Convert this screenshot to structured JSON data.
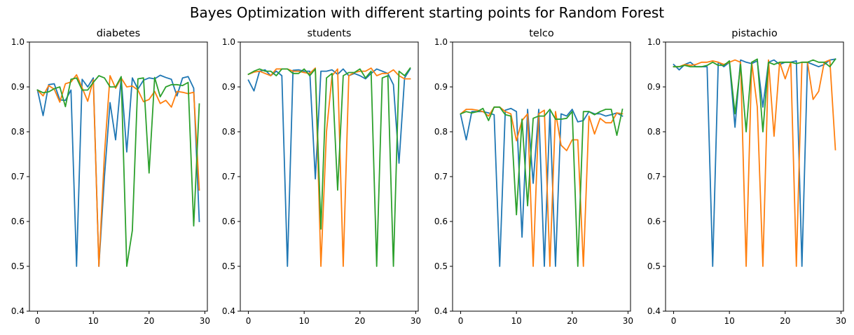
{
  "suptitle": "Bayes Optimization with different starting points for Random Forest",
  "colors": {
    "series_1": "#1f77b4",
    "series_2": "#ff7f0e",
    "series_3": "#2ca02c"
  },
  "chart_data": [
    {
      "type": "line",
      "title": "diabetes",
      "xlim": [
        -1.45,
        30.45
      ],
      "ylim": [
        0.4,
        1.0
      ],
      "xticks": [
        "0",
        "10",
        "20",
        "30"
      ],
      "yticks": [
        "0.4",
        "0.5",
        "0.6",
        "0.7",
        "0.8",
        "0.9",
        "1.0"
      ],
      "grid": false,
      "x": [
        0,
        1,
        2,
        3,
        4,
        5,
        6,
        7,
        8,
        9,
        10,
        11,
        12,
        13,
        14,
        15,
        16,
        17,
        18,
        19,
        20,
        21,
        22,
        23,
        24,
        25,
        26,
        27,
        28,
        29
      ],
      "series": [
        {
          "values": [
            0.893,
            0.836,
            0.905,
            0.907,
            0.871,
            0.87,
            0.893,
            0.5,
            0.917,
            0.9,
            0.92,
            0.5,
            0.7,
            0.865,
            0.782,
            0.92,
            0.755,
            0.92,
            0.895,
            0.915,
            0.92,
            0.918,
            0.926,
            0.921,
            0.917,
            0.88,
            0.92,
            0.923,
            0.897,
            0.6
          ]
        },
        {
          "values": [
            0.893,
            0.88,
            0.903,
            0.895,
            0.866,
            0.907,
            0.911,
            0.927,
            0.898,
            0.868,
            0.916,
            0.5,
            0.75,
            0.925,
            0.897,
            0.92,
            0.9,
            0.902,
            0.893,
            0.867,
            0.872,
            0.89,
            0.863,
            0.87,
            0.855,
            0.89,
            0.888,
            0.885,
            0.888,
            0.67
          ]
        },
        {
          "values": [
            0.893,
            0.887,
            0.889,
            0.896,
            0.9,
            0.856,
            0.917,
            0.92,
            0.893,
            0.893,
            0.91,
            0.925,
            0.92,
            0.9,
            0.9,
            0.923,
            0.5,
            0.58,
            0.918,
            0.92,
            0.708,
            0.921,
            0.878,
            0.9,
            0.905,
            0.905,
            0.903,
            0.91,
            0.59,
            0.862
          ]
        }
      ]
    },
    {
      "type": "line",
      "title": "students",
      "xlim": [
        -1.45,
        30.45
      ],
      "ylim": [
        0.4,
        1.0
      ],
      "xticks": [
        "0",
        "10",
        "20",
        "30"
      ],
      "yticks": [
        "0.4",
        "0.5",
        "0.6",
        "0.7",
        "0.8",
        "0.9",
        "1.0"
      ],
      "grid": false,
      "x": [
        0,
        1,
        2,
        3,
        4,
        5,
        6,
        7,
        8,
        9,
        10,
        11,
        12,
        13,
        14,
        15,
        16,
        17,
        18,
        19,
        20,
        21,
        22,
        23,
        24,
        25,
        26,
        27,
        28,
        29
      ],
      "series": [
        {
          "values": [
            0.915,
            0.891,
            0.935,
            0.938,
            0.925,
            0.935,
            0.925,
            0.5,
            0.937,
            0.938,
            0.935,
            0.935,
            0.695,
            0.935,
            0.935,
            0.938,
            0.928,
            0.94,
            0.925,
            0.93,
            0.925,
            0.918,
            0.93,
            0.94,
            0.935,
            0.93,
            0.905,
            0.73,
            0.92,
            0.94
          ]
        },
        {
          "values": [
            0.928,
            0.933,
            0.935,
            0.93,
            0.925,
            0.94,
            0.94,
            0.94,
            0.935,
            0.935,
            0.932,
            0.93,
            0.942,
            0.5,
            0.8,
            0.925,
            0.94,
            0.5,
            0.925,
            0.932,
            0.935,
            0.935,
            0.942,
            0.925,
            0.93,
            0.93,
            0.938,
            0.925,
            0.918,
            0.918
          ]
        },
        {
          "values": [
            0.928,
            0.935,
            0.94,
            0.935,
            0.935,
            0.925,
            0.94,
            0.94,
            0.93,
            0.93,
            0.94,
            0.925,
            0.94,
            0.583,
            0.92,
            0.93,
            0.67,
            0.925,
            0.932,
            0.932,
            0.94,
            0.92,
            0.935,
            0.5,
            0.92,
            0.925,
            0.5,
            0.935,
            0.925,
            0.942
          ]
        }
      ]
    },
    {
      "type": "line",
      "title": "telco",
      "xlim": [
        -1.45,
        30.45
      ],
      "ylim": [
        0.4,
        1.0
      ],
      "xticks": [
        "0",
        "10",
        "20",
        "30"
      ],
      "yticks": [
        "0.4",
        "0.5",
        "0.6",
        "0.7",
        "0.8",
        "0.9",
        "1.0"
      ],
      "grid": false,
      "x": [
        0,
        1,
        2,
        3,
        4,
        5,
        6,
        7,
        8,
        9,
        10,
        11,
        12,
        13,
        14,
        15,
        16,
        17,
        18,
        19,
        20,
        21,
        22,
        23,
        24,
        25,
        26,
        27,
        28,
        29
      ],
      "series": [
        {
          "values": [
            0.838,
            0.782,
            0.845,
            0.845,
            0.845,
            0.842,
            0.838,
            0.5,
            0.848,
            0.852,
            0.845,
            0.565,
            0.85,
            0.685,
            0.85,
            0.5,
            0.845,
            0.5,
            0.84,
            0.835,
            0.85,
            0.822,
            0.825,
            0.845,
            0.84,
            0.84,
            0.835,
            0.838,
            0.842,
            0.835
          ]
        },
        {
          "values": [
            0.84,
            0.85,
            0.85,
            0.848,
            0.845,
            0.835,
            0.855,
            0.855,
            0.845,
            0.84,
            0.78,
            0.825,
            0.84,
            0.5,
            0.84,
            0.848,
            0.5,
            0.845,
            0.77,
            0.758,
            0.782,
            0.782,
            0.5,
            0.835,
            0.795,
            0.83,
            0.82,
            0.82,
            0.842,
            0.84
          ]
        },
        {
          "values": [
            0.84,
            0.845,
            0.842,
            0.845,
            0.852,
            0.825,
            0.855,
            0.855,
            0.838,
            0.835,
            0.615,
            0.828,
            0.635,
            0.83,
            0.835,
            0.835,
            0.85,
            0.828,
            0.828,
            0.83,
            0.845,
            0.5,
            0.845,
            0.845,
            0.838,
            0.845,
            0.85,
            0.85,
            0.792,
            0.85
          ]
        }
      ]
    },
    {
      "type": "line",
      "title": "pistachio",
      "xlim": [
        -1.45,
        30.45
      ],
      "ylim": [
        0.4,
        1.0
      ],
      "xticks": [
        "0",
        "10",
        "20",
        "30"
      ],
      "yticks": [
        "0.4",
        "0.5",
        "0.6",
        "0.7",
        "0.8",
        "0.9",
        "1.0"
      ],
      "grid": false,
      "x": [
        0,
        1,
        2,
        3,
        4,
        5,
        6,
        7,
        8,
        9,
        10,
        11,
        12,
        13,
        14,
        15,
        16,
        17,
        18,
        19,
        20,
        21,
        22,
        23,
        24,
        25,
        26,
        27,
        28,
        29
      ],
      "series": [
        {
          "values": [
            0.95,
            0.938,
            0.95,
            0.955,
            0.945,
            0.945,
            0.945,
            0.5,
            0.955,
            0.945,
            0.955,
            0.81,
            0.96,
            0.955,
            0.952,
            0.958,
            0.855,
            0.955,
            0.96,
            0.95,
            0.955,
            0.955,
            0.958,
            0.5,
            0.955,
            0.95,
            0.945,
            0.95,
            0.96,
            0.962
          ]
        },
        {
          "values": [
            0.945,
            0.945,
            0.95,
            0.948,
            0.95,
            0.955,
            0.955,
            0.958,
            0.955,
            0.95,
            0.955,
            0.96,
            0.955,
            0.5,
            0.955,
            0.855,
            0.5,
            0.96,
            0.79,
            0.955,
            0.918,
            0.955,
            0.5,
            0.955,
            0.955,
            0.872,
            0.89,
            0.955,
            0.96,
            0.76
          ]
        },
        {
          "values": [
            0.945,
            0.945,
            0.948,
            0.945,
            0.945,
            0.945,
            0.948,
            0.955,
            0.948,
            0.948,
            0.958,
            0.84,
            0.95,
            0.8,
            0.955,
            0.962,
            0.8,
            0.955,
            0.95,
            0.955,
            0.955,
            0.955,
            0.952,
            0.955,
            0.955,
            0.96,
            0.955,
            0.955,
            0.945,
            0.962
          ]
        }
      ]
    }
  ]
}
